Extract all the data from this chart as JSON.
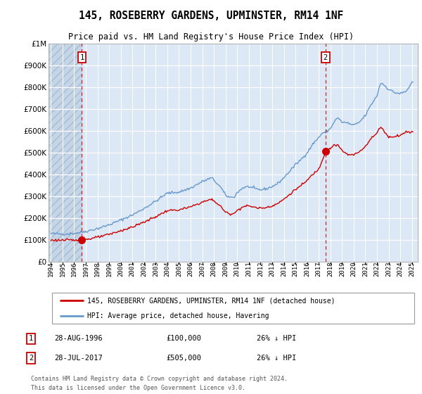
{
  "title": "145, ROSEBERRY GARDENS, UPMINSTER, RM14 1NF",
  "subtitle": "Price paid vs. HM Land Registry's House Price Index (HPI)",
  "sale1_year": 1996.66,
  "sale1_price": 100000,
  "sale2_year": 2017.58,
  "sale2_price": 505000,
  "ylim": [
    0,
    1000000
  ],
  "xlim": [
    1993.8,
    2025.5
  ],
  "legend_line1": "145, ROSEBERRY GARDENS, UPMINSTER, RM14 1NF (detached house)",
  "legend_line2": "HPI: Average price, detached house, Havering",
  "footnote3": "Contains HM Land Registry data © Crown copyright and database right 2024.",
  "footnote4": "This data is licensed under the Open Government Licence v3.0.",
  "xtick_years": [
    1994,
    1995,
    1996,
    1997,
    1998,
    1999,
    2000,
    2001,
    2002,
    2003,
    2004,
    2005,
    2006,
    2007,
    2008,
    2009,
    2010,
    2011,
    2012,
    2013,
    2014,
    2015,
    2016,
    2017,
    2018,
    2019,
    2020,
    2021,
    2022,
    2023,
    2024,
    2025
  ],
  "plot_bg": "#dce8f5",
  "hatch_bg": "#c5d5e8",
  "line_red": "#cc0000",
  "line_blue": "#6699cc"
}
